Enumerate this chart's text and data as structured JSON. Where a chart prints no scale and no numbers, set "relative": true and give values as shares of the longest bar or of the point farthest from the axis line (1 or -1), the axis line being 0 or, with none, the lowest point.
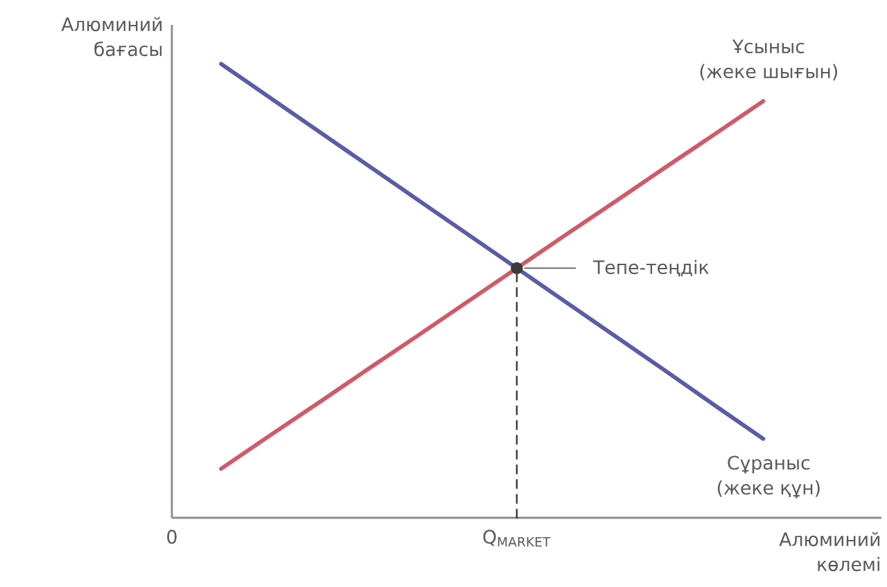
{
  "chart_data": {
    "type": "line",
    "relative": true,
    "xlabel": "Алюминий көлемі",
    "ylabel": "Алюминий бағасы",
    "categories": [
      "0",
      null,
      null,
      null,
      null,
      null,
      null,
      "Q$_{MARKET}$",
      null,
      null,
      null,
      null,
      null
    ],
    "series": [
      {
        "name": "Ұсыныс (жеке шығын)",
        "color": "#d05a68",
        "values": [
          null,
          0.108,
          0.182,
          0.255,
          0.329,
          0.402,
          0.476,
          0.55,
          0.624,
          0.697,
          0.771,
          0.844,
          0.918
        ],
        "line_style": "solid"
      },
      {
        "name": "Сұраныс (жеке құн)",
        "color": "#5a5ca8",
        "values": [
          null,
          1,
          0.925,
          0.85,
          0.775,
          0.7,
          0.625,
          0.55,
          0.475,
          0.4,
          0.325,
          0.249,
          0.174
        ],
        "line_style": "solid"
      },
      {
        "type": "lollipop",
        "color": "#3a3a3a",
        "values": [
          null,
          null,
          null,
          null,
          null,
          null,
          null,
          0.55,
          null,
          null,
          null,
          null,
          null
        ],
        "marker": "circle",
        "line_style": "dashed"
      }
    ],
    "annotations": [
      {
        "text": "Тепе-теңдік",
        "x": "Q$_{MARKET}$",
        "y": 0.55
      }
    ],
    "legend": false
  }
}
